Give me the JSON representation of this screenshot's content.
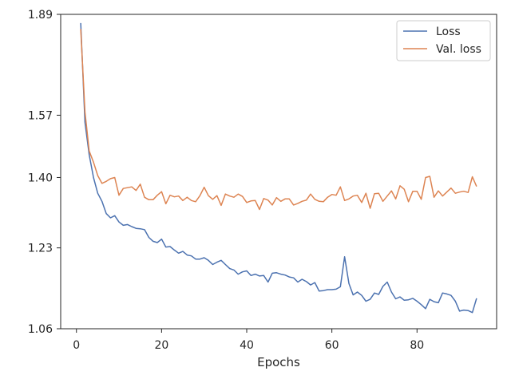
{
  "chart_data": {
    "type": "line",
    "title": "",
    "xlabel": "Epochs",
    "ylabel": "",
    "xlim": [
      -3.7,
      98.7
    ],
    "ylim": [
      1.06,
      1.89
    ],
    "y_scale": "log",
    "grid": false,
    "legend_placement": "top-right",
    "x_ticks": [
      0,
      20,
      40,
      60,
      80
    ],
    "x_tick_labels": [
      "0",
      "20",
      "40",
      "60",
      "80"
    ],
    "y_ticks": [
      1.06,
      1.23,
      1.4,
      1.57,
      1.89
    ],
    "y_tick_labels": [
      "1.06",
      "1.23",
      "1.40",
      "1.57",
      "1.89"
    ],
    "series": [
      {
        "name": "Loss",
        "color": "#4c72b0",
        "x": [
          1,
          2,
          3,
          4,
          5,
          6,
          7,
          8,
          9,
          10,
          11,
          12,
          13,
          14,
          15,
          16,
          17,
          18,
          19,
          20,
          21,
          22,
          23,
          24,
          25,
          26,
          27,
          28,
          29,
          30,
          31,
          32,
          33,
          34,
          35,
          36,
          37,
          38,
          39,
          40,
          41,
          42,
          43,
          44,
          45,
          46,
          47,
          48,
          49,
          50,
          51,
          52,
          53,
          54,
          55,
          56,
          57,
          58,
          59,
          60,
          61,
          62,
          63,
          64,
          65,
          66,
          67,
          68,
          69,
          70,
          71,
          72,
          73,
          74,
          75,
          76,
          77,
          78,
          79,
          80,
          81,
          82,
          83,
          84,
          85,
          86,
          87,
          88,
          89,
          90,
          91,
          92,
          93,
          94
        ],
        "values": [
          1.86,
          1.55,
          1.46,
          1.4,
          1.36,
          1.34,
          1.31,
          1.3,
          1.305,
          1.29,
          1.282,
          1.284,
          1.279,
          1.275,
          1.274,
          1.272,
          1.254,
          1.245,
          1.242,
          1.25,
          1.232,
          1.233,
          1.225,
          1.218,
          1.222,
          1.214,
          1.212,
          1.205,
          1.205,
          1.208,
          1.202,
          1.193,
          1.198,
          1.202,
          1.193,
          1.184,
          1.181,
          1.172,
          1.177,
          1.179,
          1.169,
          1.172,
          1.168,
          1.169,
          1.155,
          1.174,
          1.175,
          1.172,
          1.17,
          1.166,
          1.164,
          1.155,
          1.161,
          1.156,
          1.149,
          1.154,
          1.136,
          1.137,
          1.139,
          1.139,
          1.14,
          1.145,
          1.21,
          1.152,
          1.128,
          1.134,
          1.127,
          1.115,
          1.119,
          1.132,
          1.129,
          1.146,
          1.155,
          1.134,
          1.12,
          1.124,
          1.117,
          1.118,
          1.121,
          1.115,
          1.108,
          1.1,
          1.119,
          1.114,
          1.112,
          1.132,
          1.13,
          1.127,
          1.115,
          1.095,
          1.097,
          1.096,
          1.092,
          1.121
        ]
      },
      {
        "name": "Val. loss",
        "color": "#dd8452",
        "x": [
          1,
          2,
          3,
          4,
          5,
          6,
          7,
          8,
          9,
          10,
          11,
          12,
          13,
          14,
          15,
          16,
          17,
          18,
          19,
          20,
          21,
          22,
          23,
          24,
          25,
          26,
          27,
          28,
          29,
          30,
          31,
          32,
          33,
          34,
          35,
          36,
          37,
          38,
          39,
          40,
          41,
          42,
          43,
          44,
          45,
          46,
          47,
          48,
          49,
          50,
          51,
          52,
          53,
          54,
          55,
          56,
          57,
          58,
          59,
          60,
          61,
          62,
          63,
          64,
          65,
          66,
          67,
          68,
          69,
          70,
          71,
          72,
          73,
          74,
          75,
          76,
          77,
          78,
          79,
          80,
          81,
          82,
          83,
          84,
          85,
          86,
          87,
          88,
          89,
          90,
          91,
          92,
          93,
          94
        ],
        "values": [
          1.84,
          1.58,
          1.47,
          1.44,
          1.405,
          1.385,
          1.39,
          1.397,
          1.4,
          1.355,
          1.372,
          1.374,
          1.376,
          1.367,
          1.383,
          1.35,
          1.344,
          1.344,
          1.355,
          1.364,
          1.334,
          1.355,
          1.351,
          1.353,
          1.342,
          1.35,
          1.342,
          1.339,
          1.354,
          1.375,
          1.354,
          1.345,
          1.354,
          1.33,
          1.358,
          1.353,
          1.35,
          1.358,
          1.352,
          1.337,
          1.341,
          1.342,
          1.32,
          1.347,
          1.343,
          1.331,
          1.349,
          1.34,
          1.346,
          1.346,
          1.331,
          1.335,
          1.34,
          1.343,
          1.358,
          1.345,
          1.34,
          1.339,
          1.35,
          1.357,
          1.355,
          1.376,
          1.342,
          1.346,
          1.353,
          1.355,
          1.337,
          1.36,
          1.323,
          1.359,
          1.36,
          1.34,
          1.353,
          1.366,
          1.346,
          1.379,
          1.37,
          1.339,
          1.365,
          1.365,
          1.345,
          1.4,
          1.403,
          1.35,
          1.366,
          1.353,
          1.363,
          1.373,
          1.36,
          1.363,
          1.365,
          1.362,
          1.402,
          1.377
        ]
      }
    ]
  }
}
